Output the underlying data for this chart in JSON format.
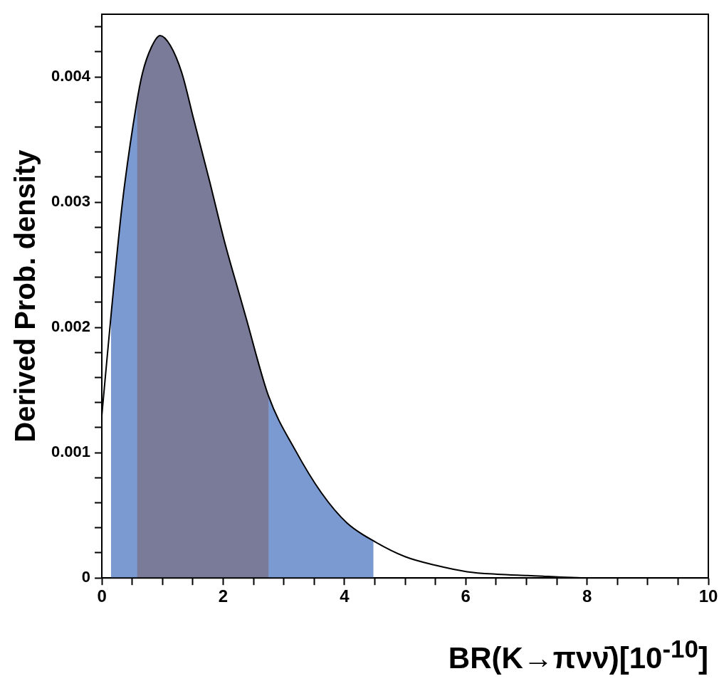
{
  "chart_data": {
    "type": "line",
    "xlabel": "BR(K→πνν̄)[10$^{-10}$]",
    "ylabel": "Derived Prob. density",
    "xlim": [
      0,
      10
    ],
    "ylim": [
      0,
      0.0045
    ],
    "xticks": [
      0,
      {
        "value": 0.5,
        "label": null
      },
      2,
      {
        "value": 1,
        "label": null
      },
      {
        "value": 1.5,
        "label": null
      },
      {
        "value": 2.5,
        "label": null
      },
      {
        "value": 3,
        "label": null
      },
      {
        "value": 3.5,
        "label": null
      },
      4,
      {
        "value": 4.5,
        "label": null
      },
      {
        "value": 5,
        "label": null
      },
      {
        "value": 5.5,
        "label": null
      },
      6,
      {
        "value": 6.5,
        "label": null
      },
      {
        "value": 7,
        "label": null
      },
      {
        "value": 7.5,
        "label": null
      },
      8,
      {
        "value": 8.5,
        "label": null
      },
      {
        "value": 9,
        "label": null
      },
      {
        "value": 9.5,
        "label": null
      },
      10
    ],
    "yticks": [
      0,
      {
        "value": 0.0002,
        "label": null
      },
      {
        "value": 0.0004,
        "label": null
      },
      {
        "value": 0.0006,
        "label": null
      },
      {
        "value": 0.0008,
        "label": null
      },
      0.001,
      {
        "value": 0.0012,
        "label": null
      },
      {
        "value": 0.0014,
        "label": null
      },
      {
        "value": 0.0016,
        "label": null
      },
      {
        "value": 0.0018,
        "label": null
      },
      0.002,
      {
        "value": 0.0022,
        "label": null
      },
      {
        "value": 0.0024,
        "label": null
      },
      {
        "value": 0.0026,
        "label": null
      },
      {
        "value": 0.0028,
        "label": null
      },
      0.003,
      {
        "value": 0.0032,
        "label": null
      },
      {
        "value": 0.0034,
        "label": null
      },
      {
        "value": 0.0036,
        "label": null
      },
      {
        "value": 0.0038,
        "label": null
      },
      0.004,
      {
        "value": 0.0042,
        "label": null
      },
      {
        "value": 0.0044,
        "label": null
      }
    ],
    "marker": "none",
    "legend": false,
    "grid": false,
    "series": [
      {
        "type": "line",
        "color": "#000000",
        "x": [
          0,
          0.16,
          0.34,
          0.57,
          0.67,
          0.82,
          0.96,
          1.13,
          1.32,
          1.51,
          1.77,
          2.02,
          2.27,
          2.37,
          2.75,
          3.19,
          3.62,
          4.04,
          4.5,
          5.0,
          5.51,
          6.02,
          6.52,
          7.02,
          8.03,
          8.5
        ],
        "values": [
          0.0013,
          0.00214,
          0.003,
          0.00378,
          0.00403,
          0.00424,
          0.00433,
          0.00425,
          0.00403,
          0.00367,
          0.00318,
          0.00269,
          0.00226,
          0.00209,
          0.00145,
          0.00102,
          0.00068,
          0.00044,
          0.00029,
          0.00017,
          0.0001,
          5e-05,
          3e-05,
          2e-05,
          0,
          0
        ]
      },
      {
        "type": "area",
        "color": "#7a7a99",
        "x": [
          0.58,
          0.67,
          0.82,
          0.96,
          1.13,
          1.32,
          1.51,
          1.77,
          2.02,
          2.27,
          2.37,
          2.75
        ],
        "values": [
          0.0038,
          0.00403,
          0.00424,
          0.00433,
          0.00425,
          0.00403,
          0.00367,
          0.00318,
          0.00269,
          0.00226,
          0.00209,
          0.00145
        ]
      },
      {
        "type": "area",
        "color": "#7b9ad2",
        "x": [
          0.15,
          0.34,
          0.57,
          0.67,
          0.82,
          0.96,
          1.13,
          1.32,
          1.51,
          1.77,
          2.02,
          2.27,
          2.37,
          2.75,
          3.19,
          3.62,
          4.04,
          4.48
        ],
        "values": [
          0.0021,
          0.003,
          0.00378,
          0.00403,
          0.00424,
          0.00433,
          0.00425,
          0.00403,
          0.00367,
          0.00318,
          0.00269,
          0.00226,
          0.00209,
          0.00145,
          0.00102,
          0.00068,
          0.00044,
          0.0003
        ]
      }
    ]
  }
}
